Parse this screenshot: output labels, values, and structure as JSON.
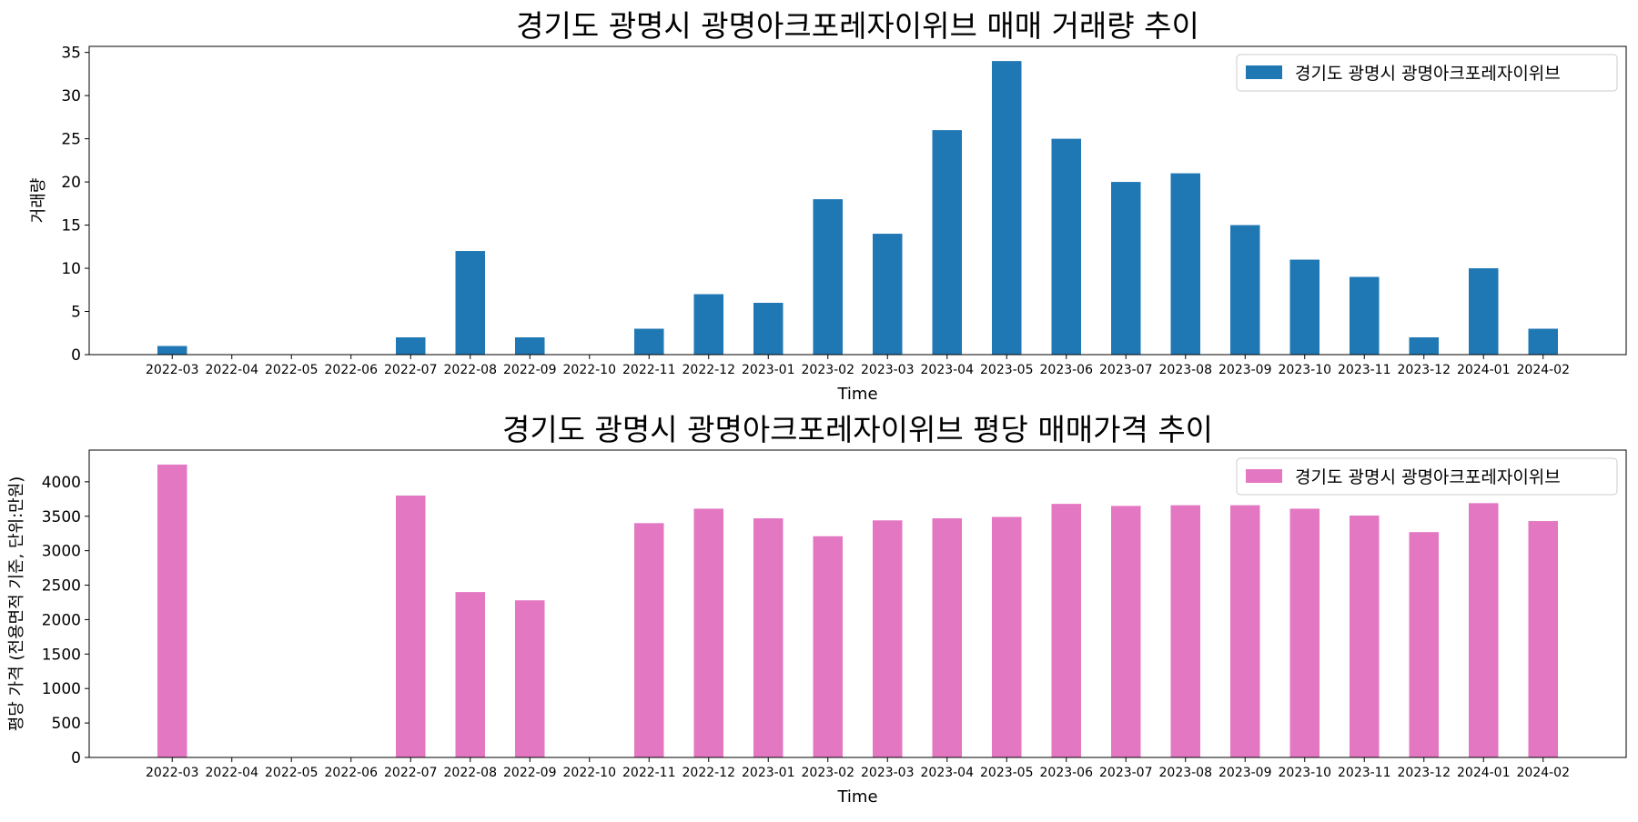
{
  "chart_data": [
    {
      "type": "bar",
      "title": "경기도 광명시 광명아크포레자이위브 매매 거래량 추이",
      "xlabel": "Time",
      "ylabel": "거래량",
      "categories": [
        "2022-03",
        "2022-04",
        "2022-05",
        "2022-06",
        "2022-07",
        "2022-08",
        "2022-09",
        "2022-10",
        "2022-11",
        "2022-12",
        "2023-01",
        "2023-02",
        "2023-03",
        "2023-04",
        "2023-05",
        "2023-06",
        "2023-07",
        "2023-08",
        "2023-09",
        "2023-10",
        "2023-11",
        "2023-12",
        "2024-01",
        "2024-02"
      ],
      "series": [
        {
          "name": "경기도 광명시 광명아크포레자이위브",
          "color": "#1f77b4",
          "values": [
            1,
            null,
            null,
            null,
            2,
            12,
            2,
            null,
            3,
            7,
            6,
            18,
            14,
            26,
            34,
            25,
            20,
            21,
            15,
            11,
            9,
            2,
            10,
            3
          ]
        }
      ],
      "ylim": [
        0,
        35.7
      ],
      "yticks": [
        0,
        5,
        10,
        15,
        20,
        25,
        30,
        35
      ],
      "legend": "top-right",
      "grid": false
    },
    {
      "type": "bar",
      "title": "경기도 광명시 광명아크포레자이위브 평당 매매가격 추이",
      "xlabel": "Time",
      "ylabel": "평당 가격 (전용면적 기준, 단위:만원)",
      "categories": [
        "2022-03",
        "2022-04",
        "2022-05",
        "2022-06",
        "2022-07",
        "2022-08",
        "2022-09",
        "2022-10",
        "2022-11",
        "2022-12",
        "2023-01",
        "2023-02",
        "2023-03",
        "2023-04",
        "2023-05",
        "2023-06",
        "2023-07",
        "2023-08",
        "2023-09",
        "2023-10",
        "2023-11",
        "2023-12",
        "2024-01",
        "2024-02"
      ],
      "series": [
        {
          "name": "경기도 광명시 광명아크포레자이위브",
          "color": "#e377c2",
          "values": [
            4250,
            null,
            null,
            null,
            3800,
            2400,
            2280,
            null,
            3400,
            3610,
            3470,
            3210,
            3440,
            3470,
            3490,
            3680,
            3650,
            3660,
            3660,
            3610,
            3510,
            3270,
            3690,
            3430
          ]
        }
      ],
      "ylim": [
        0,
        4460
      ],
      "yticks": [
        0,
        500,
        1000,
        1500,
        2000,
        2500,
        3000,
        3500,
        4000
      ],
      "legend": "top-right",
      "grid": false
    }
  ]
}
